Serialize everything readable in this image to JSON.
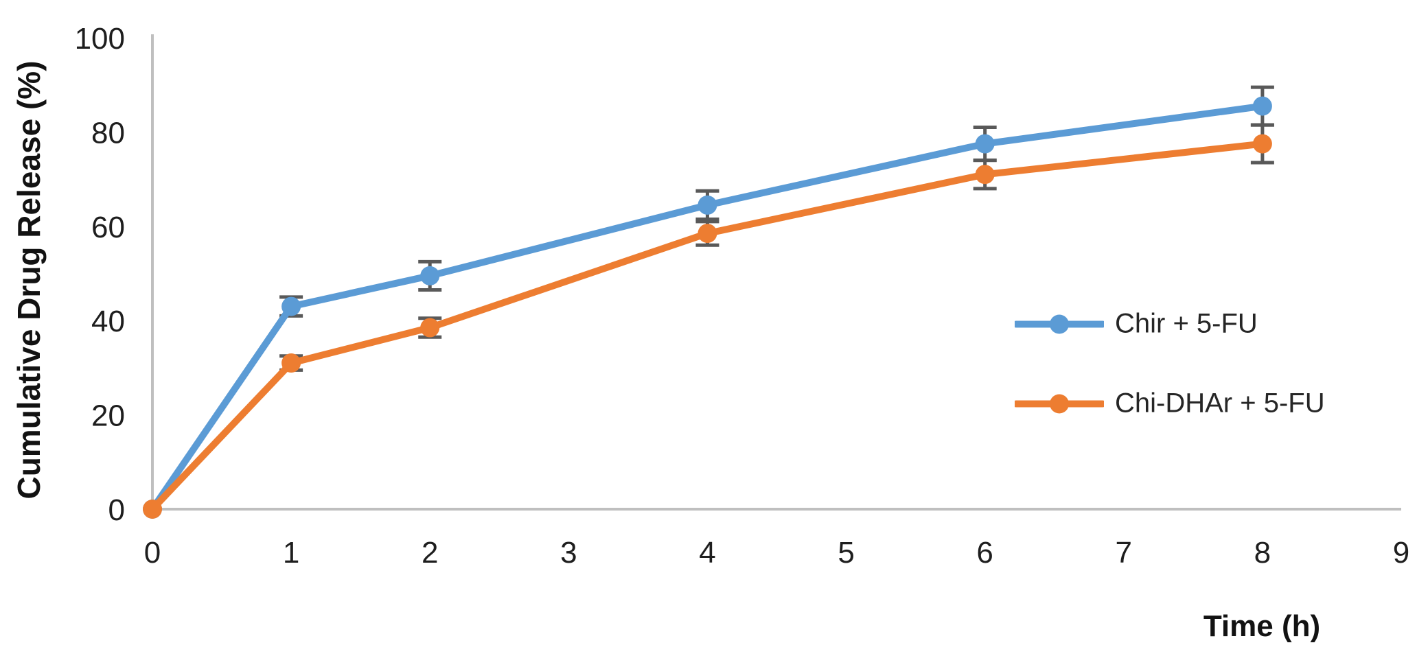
{
  "chart_data": {
    "type": "line",
    "title": "",
    "xlabel": "Time (h)",
    "ylabel": "Cumulative Drug Release (%)",
    "x": [
      0,
      1,
      2,
      4,
      6,
      8
    ],
    "series": [
      {
        "name": "Chir + 5-FU",
        "color": "#5B9BD5",
        "values": [
          0,
          43,
          49.5,
          64.5,
          77.5,
          85.5
        ],
        "errors": [
          0,
          2,
          3,
          3,
          3.5,
          4
        ]
      },
      {
        "name": "Chi-DHAr + 5-FU",
        "color": "#ED7D31",
        "values": [
          0,
          31,
          38.5,
          58.5,
          71,
          77.5
        ],
        "errors": [
          0,
          1.5,
          2,
          2.5,
          3,
          4
        ]
      }
    ],
    "xlim": [
      0,
      9
    ],
    "ylim": [
      0,
      100
    ],
    "xticks": [
      0,
      1,
      2,
      3,
      4,
      5,
      6,
      7,
      8,
      9
    ],
    "yticks": [
      0,
      20,
      40,
      60,
      80,
      100
    ],
    "grid": false,
    "legend_position": "right-middle",
    "marker": "circle",
    "error_bar_color": "#595959",
    "axis_color": "#BFBFBF"
  }
}
